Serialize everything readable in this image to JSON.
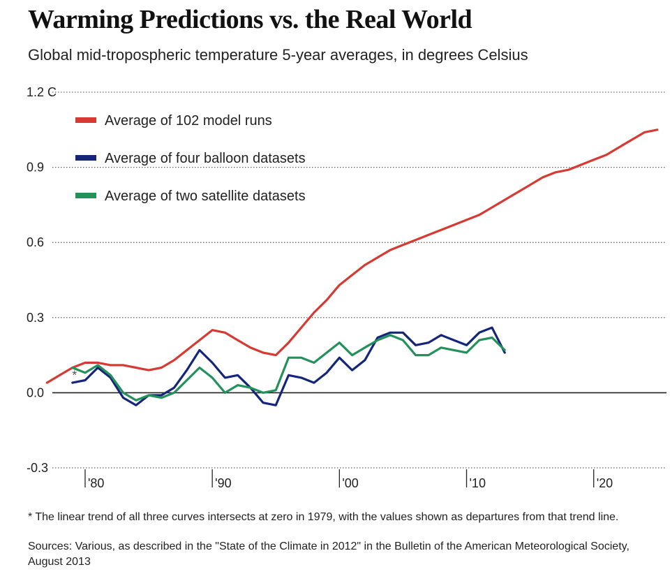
{
  "chart_data": {
    "type": "line",
    "title": "Warming Predictions vs. the Real World",
    "subtitle": "Global mid-tropospheric temperature 5-year averages, in degrees Celsius",
    "ylim": [
      -0.3,
      1.2
    ],
    "yticks": [
      {
        "value": 1.2,
        "label": "1.2 C"
      },
      {
        "value": 0.9,
        "label": "0.9"
      },
      {
        "value": 0.6,
        "label": "0.6"
      },
      {
        "value": 0.3,
        "label": "0.3"
      },
      {
        "value": 0.0,
        "label": "0.0"
      },
      {
        "value": -0.3,
        "label": "-0.3"
      }
    ],
    "xlim": [
      1975.5,
      2026
    ],
    "xticks": [
      {
        "value": 1980,
        "label": "'80"
      },
      {
        "value": 1990,
        "label": "'90"
      },
      {
        "value": 2000,
        "label": "'00"
      },
      {
        "value": 2010,
        "label": "'10"
      },
      {
        "value": 2020,
        "label": "'20"
      }
    ],
    "asterisk": {
      "x": 1979.3,
      "y": 0.07,
      "text": "*"
    },
    "series": [
      {
        "name": "Average of 102 model runs",
        "color": "#d63a32",
        "x": [
          1977,
          1978,
          1979,
          1980,
          1981,
          1982,
          1983,
          1984,
          1985,
          1986,
          1987,
          1988,
          1989,
          1990,
          1991,
          1992,
          1993,
          1994,
          1995,
          1996,
          1997,
          1998,
          1999,
          2000,
          2001,
          2002,
          2003,
          2004,
          2005,
          2006,
          2007,
          2008,
          2009,
          2010,
          2011,
          2012,
          2013,
          2014,
          2015,
          2016,
          2017,
          2018,
          2019,
          2020,
          2021,
          2022,
          2023,
          2024,
          2025
        ],
        "values": [
          0.04,
          0.07,
          0.1,
          0.12,
          0.12,
          0.11,
          0.11,
          0.1,
          0.09,
          0.1,
          0.13,
          0.17,
          0.21,
          0.25,
          0.24,
          0.21,
          0.18,
          0.16,
          0.15,
          0.2,
          0.26,
          0.32,
          0.37,
          0.43,
          0.47,
          0.51,
          0.54,
          0.57,
          0.59,
          0.61,
          0.63,
          0.65,
          0.67,
          0.69,
          0.71,
          0.74,
          0.77,
          0.8,
          0.83,
          0.86,
          0.88,
          0.89,
          0.91,
          0.93,
          0.95,
          0.98,
          1.01,
          1.04,
          1.05
        ]
      },
      {
        "name": "Average of four balloon datasets",
        "color": "#14267a",
        "x": [
          1979,
          1980,
          1981,
          1982,
          1983,
          1984,
          1985,
          1986,
          1987,
          1988,
          1989,
          1990,
          1991,
          1992,
          1993,
          1994,
          1995,
          1996,
          1997,
          1998,
          1999,
          2000,
          2001,
          2002,
          2003,
          2004,
          2005,
          2006,
          2007,
          2008,
          2009,
          2010,
          2011,
          2012,
          2013
        ],
        "values": [
          0.04,
          0.05,
          0.1,
          0.06,
          -0.02,
          -0.05,
          -0.01,
          -0.01,
          0.02,
          0.09,
          0.17,
          0.12,
          0.06,
          0.07,
          0.02,
          -0.04,
          -0.05,
          0.07,
          0.06,
          0.04,
          0.08,
          0.14,
          0.09,
          0.13,
          0.22,
          0.24,
          0.24,
          0.19,
          0.2,
          0.23,
          0.21,
          0.19,
          0.24,
          0.26,
          0.16
        ]
      },
      {
        "name": "Average of two satellite datasets",
        "color": "#22915a",
        "x": [
          1979,
          1980,
          1981,
          1982,
          1983,
          1984,
          1985,
          1986,
          1987,
          1988,
          1989,
          1990,
          1991,
          1992,
          1993,
          1994,
          1995,
          1996,
          1997,
          1998,
          1999,
          2000,
          2001,
          2002,
          2003,
          2004,
          2005,
          2006,
          2007,
          2008,
          2009,
          2010,
          2011,
          2012,
          2013
        ],
        "values": [
          0.1,
          0.08,
          0.11,
          0.07,
          0.0,
          -0.03,
          -0.01,
          -0.02,
          0.0,
          0.05,
          0.1,
          0.06,
          0.0,
          0.03,
          0.02,
          0.0,
          0.01,
          0.14,
          0.14,
          0.12,
          0.16,
          0.2,
          0.15,
          0.18,
          0.21,
          0.23,
          0.21,
          0.15,
          0.15,
          0.18,
          0.17,
          0.16,
          0.21,
          0.22,
          0.17
        ]
      }
    ]
  },
  "footnote": "* The linear trend of all three curves intersects at zero in 1979, with the values shown as departures from that trend line.",
  "sources": "Sources: Various, as described in the \"State of the Climate in 2012\" in the Bulletin of the American Meteorological Society, August 2013"
}
